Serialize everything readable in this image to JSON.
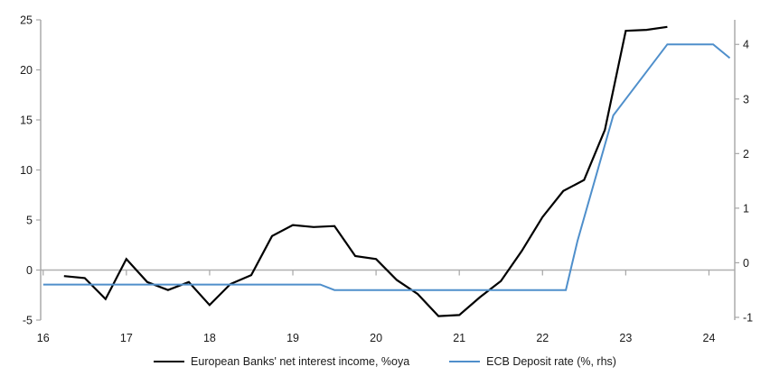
{
  "chart_data": {
    "type": "line",
    "title": "",
    "series": [
      {
        "name": "European Banks' net interest income, %oya",
        "axis": "left",
        "color": "#000000",
        "stroke_width": 2.2,
        "points": [
          [
            16.25,
            -0.6
          ],
          [
            16.5,
            -0.8
          ],
          [
            16.75,
            -2.9
          ],
          [
            17.0,
            1.1
          ],
          [
            17.25,
            -1.2
          ],
          [
            17.5,
            -2.0
          ],
          [
            17.75,
            -1.2
          ],
          [
            18.0,
            -3.5
          ],
          [
            18.25,
            -1.4
          ],
          [
            18.5,
            -0.5
          ],
          [
            18.75,
            3.4
          ],
          [
            19.0,
            4.5
          ],
          [
            19.25,
            4.3
          ],
          [
            19.5,
            4.4
          ],
          [
            19.75,
            1.4
          ],
          [
            20.0,
            1.1
          ],
          [
            20.25,
            -1.0
          ],
          [
            20.5,
            -2.4
          ],
          [
            20.75,
            -4.6
          ],
          [
            21.0,
            -4.5
          ],
          [
            21.25,
            -2.7
          ],
          [
            21.5,
            -1.1
          ],
          [
            21.75,
            1.9
          ],
          [
            22.0,
            5.3
          ],
          [
            22.25,
            7.9
          ],
          [
            22.5,
            9.0
          ],
          [
            22.75,
            14.0
          ],
          [
            23.0,
            23.9
          ],
          [
            23.25,
            24.0
          ],
          [
            23.5,
            24.3
          ]
        ]
      },
      {
        "name": "ECB Deposit rate (%, rhs)",
        "axis": "right",
        "color": "#4f8fcb",
        "stroke_width": 2,
        "points": [
          [
            16.0,
            -0.4
          ],
          [
            19.33,
            -0.4
          ],
          [
            19.5,
            -0.5
          ],
          [
            22.28,
            -0.5
          ],
          [
            22.42,
            0.4
          ],
          [
            22.85,
            2.7
          ],
          [
            23.0,
            3.0
          ],
          [
            23.5,
            4.0
          ],
          [
            24.05,
            4.0
          ],
          [
            24.25,
            3.75
          ]
        ]
      }
    ],
    "x_axis": {
      "range": [
        15.97,
        24.31
      ],
      "ticks": [
        16,
        17,
        18,
        19,
        20,
        21,
        22,
        23,
        24
      ],
      "tick_labels": [
        "16",
        "17",
        "18",
        "19",
        "20",
        "21",
        "22",
        "23",
        "24"
      ]
    },
    "y_left": {
      "range": [
        -5,
        25
      ],
      "ticks": [
        -5,
        0,
        5,
        10,
        15,
        20,
        25
      ],
      "tick_labels": [
        "-5",
        "0",
        "5",
        "10",
        "15",
        "20",
        "25"
      ]
    },
    "y_right": {
      "range": [
        -1.05,
        4.45
      ],
      "ticks": [
        -1,
        0,
        1,
        2,
        3,
        4
      ],
      "tick_labels": [
        "-1",
        "0",
        "1",
        "2",
        "3",
        "4"
      ]
    },
    "zero_line": true,
    "grid": false,
    "legend_position": "bottom",
    "colors": {
      "axis": "#a6a6a6",
      "zero_line": "#b0b0b0",
      "tick_text": "#1a1a1a"
    }
  }
}
